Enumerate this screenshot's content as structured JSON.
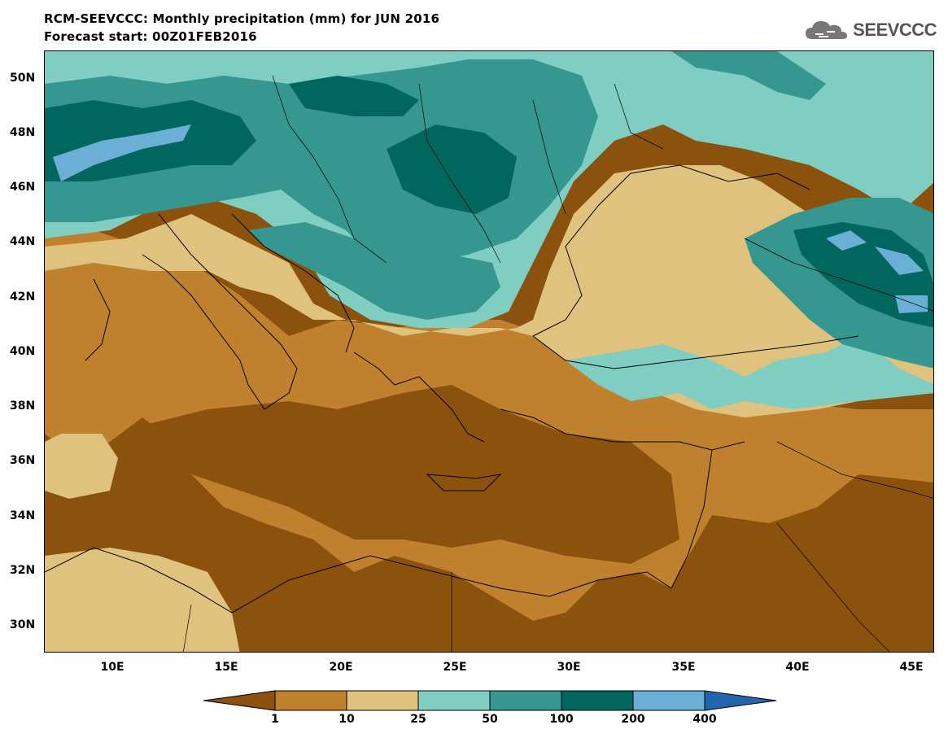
{
  "header": {
    "title": "RCM-SEEVCCC: Monthly precipitation (mm) for JUN 2016",
    "subtitle": "Forecast start: 00Z01FEB2016"
  },
  "logo": {
    "text": "SEEVCCC",
    "icon": "cloud-icon"
  },
  "map": {
    "lat_labels": [
      "50N",
      "48N",
      "46N",
      "44N",
      "42N",
      "40N",
      "38N",
      "36N",
      "34N",
      "32N",
      "30N"
    ],
    "lon_labels": [
      "10E",
      "15E",
      "20E",
      "25E",
      "30E",
      "35E",
      "40E",
      "45E"
    ],
    "lon_range": [
      7,
      46
    ],
    "lat_range": [
      29,
      51
    ]
  },
  "legend": {
    "labels": [
      "1",
      "10",
      "25",
      "50",
      "100",
      "200",
      "400"
    ],
    "colors": [
      "#8b520e",
      "#bf812d",
      "#dfc27d",
      "#80cdc1",
      "#35978f",
      "#01665e",
      "#6baed6",
      "#2166ac"
    ]
  }
}
